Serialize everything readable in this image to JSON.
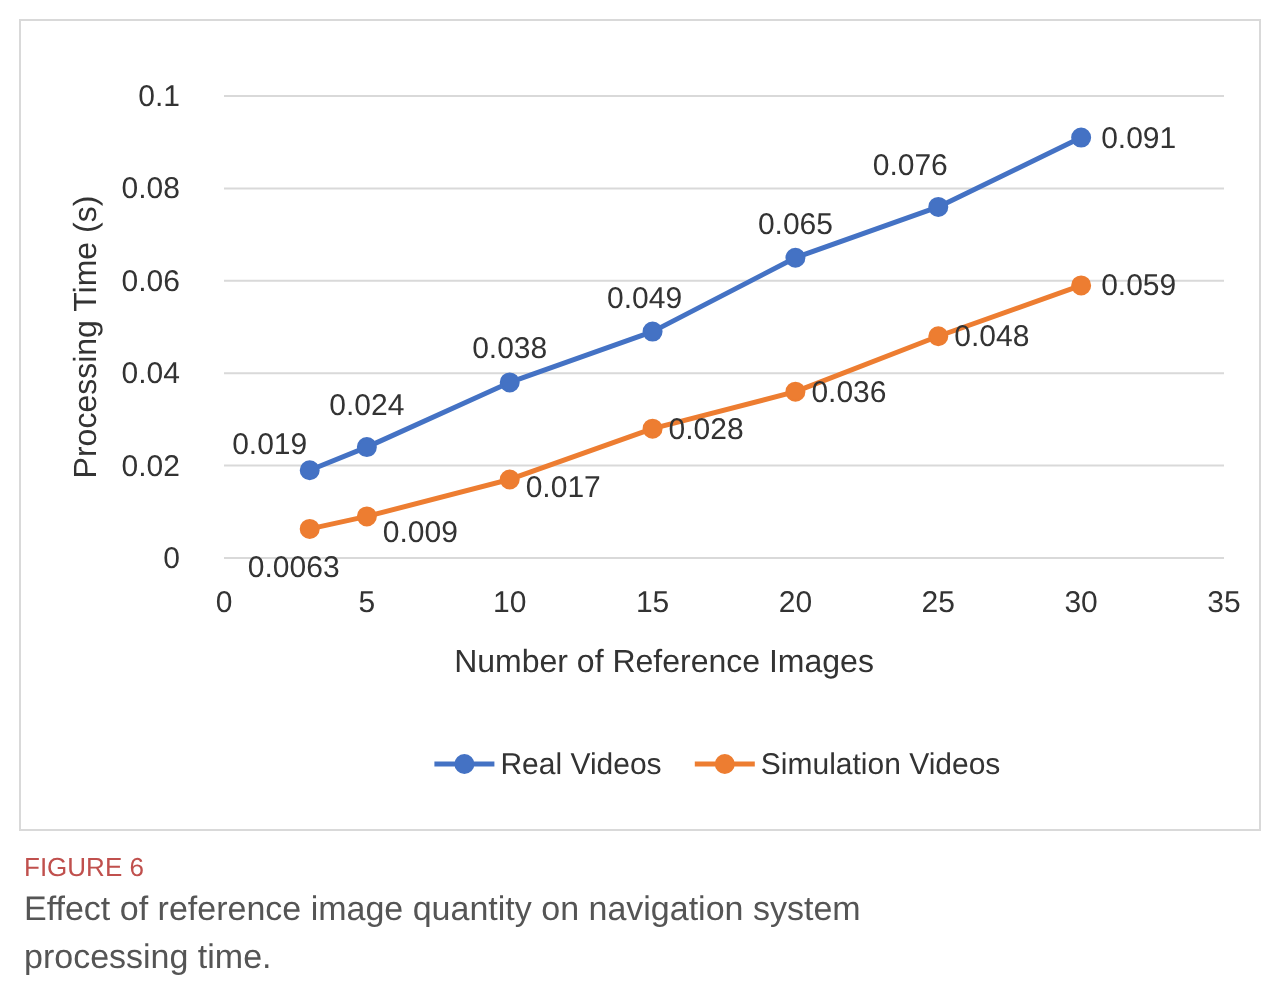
{
  "chart_data": {
    "type": "line",
    "xlabel": "Number of Reference Images",
    "ylabel": "Processing Time (s)",
    "xlim": [
      0,
      35
    ],
    "xticks": [
      0,
      5,
      10,
      15,
      20,
      25,
      30,
      35
    ],
    "ylim": [
      0,
      0.1
    ],
    "yticks": [
      0,
      0.02,
      0.04,
      0.06,
      0.08,
      0.1
    ],
    "grid": "y",
    "legend": "bottom",
    "marker": "circle",
    "data_labels": true,
    "series": [
      {
        "name": "Real Videos",
        "color": "#4472c4",
        "x": [
          3,
          5,
          10,
          15,
          20,
          25,
          30
        ],
        "values": [
          0.019,
          0.024,
          0.038,
          0.049,
          0.065,
          0.076,
          0.091
        ]
      },
      {
        "name": "Simulation Videos",
        "color": "#ed7d31",
        "x": [
          3,
          5,
          10,
          15,
          20,
          25,
          30
        ],
        "values": [
          0.0063,
          0.009,
          0.017,
          0.028,
          0.036,
          0.048,
          0.059
        ]
      }
    ],
    "annotations": [
      "FIGURE 6",
      "Effect of reference image quantity on navigation system processing time."
    ]
  }
}
